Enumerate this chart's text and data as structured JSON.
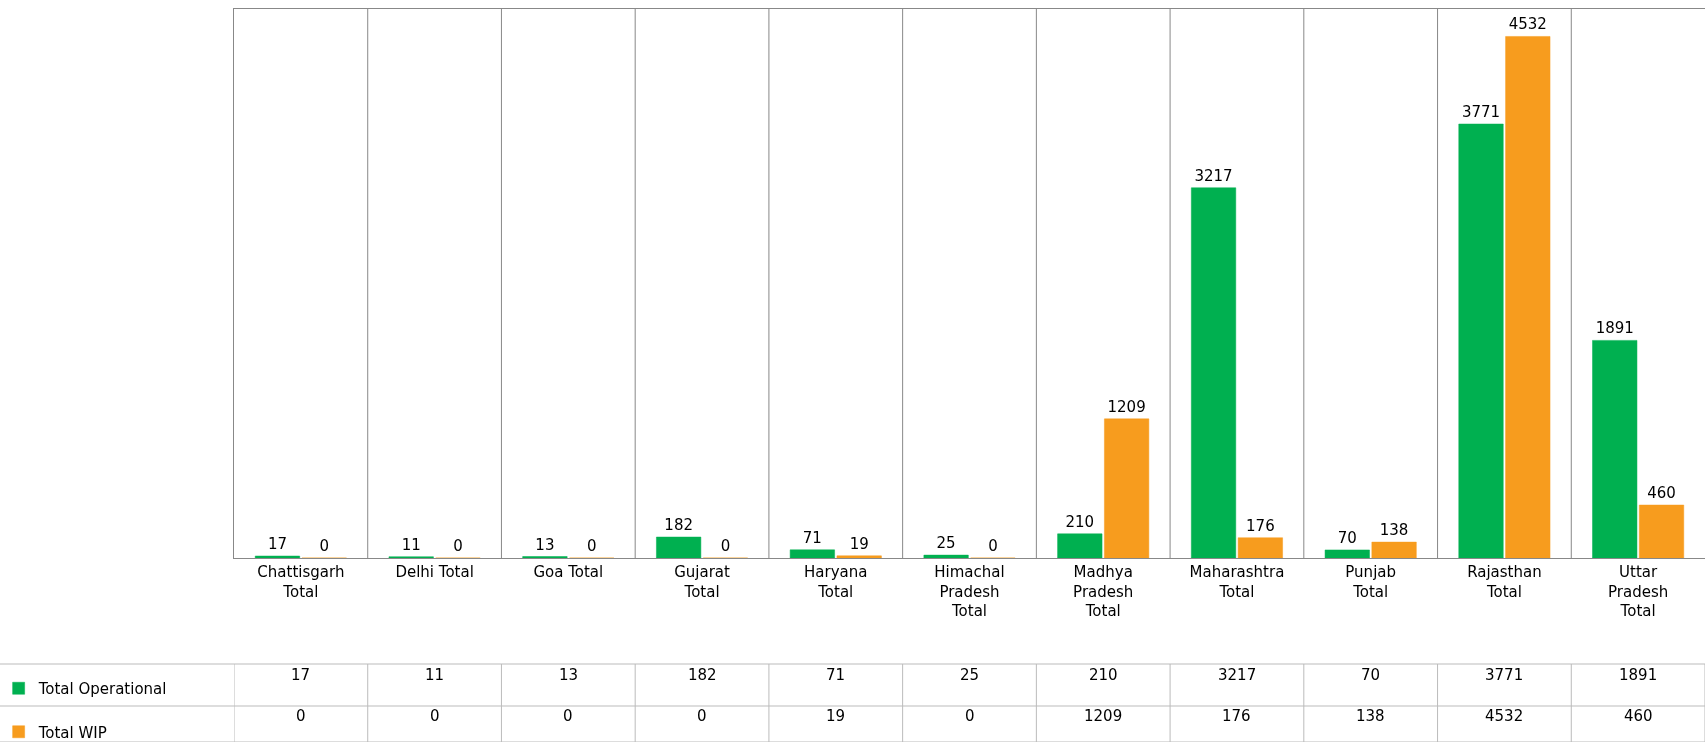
{
  "chart_data": {
    "type": "bar",
    "categories": [
      "Chattisgarh Total",
      "Delhi Total",
      "Goa Total",
      "Gujarat Total",
      "Haryana Total",
      "Himachal Pradesh Total",
      "Madhya Pradesh Total",
      "Maharashtra Total",
      "Punjab Total",
      "Rajasthan Total",
      "Uttar Pradesh Total"
    ],
    "series": [
      {
        "name": "Total Operational",
        "color": "#00b050",
        "values": [
          17,
          11,
          13,
          182,
          71,
          25,
          210,
          3217,
          70,
          3771,
          1891
        ],
        "value_labels": [
          "17",
          "11",
          "13",
          "182",
          "71",
          "25",
          "210",
          "3217",
          "70",
          "3771",
          "1891"
        ]
      },
      {
        "name": "Total WIP",
        "color": "#f79c1e",
        "values": [
          0,
          0,
          0,
          0,
          19,
          0,
          1209,
          176,
          138,
          4532,
          460
        ],
        "value_labels": [
          "0",
          "0",
          "0",
          "0",
          "19",
          "0",
          "1209",
          "176",
          "138",
          "4532",
          "460"
        ]
      }
    ],
    "data_labels": true,
    "grid": "x",
    "legend": "bottom left"
  }
}
